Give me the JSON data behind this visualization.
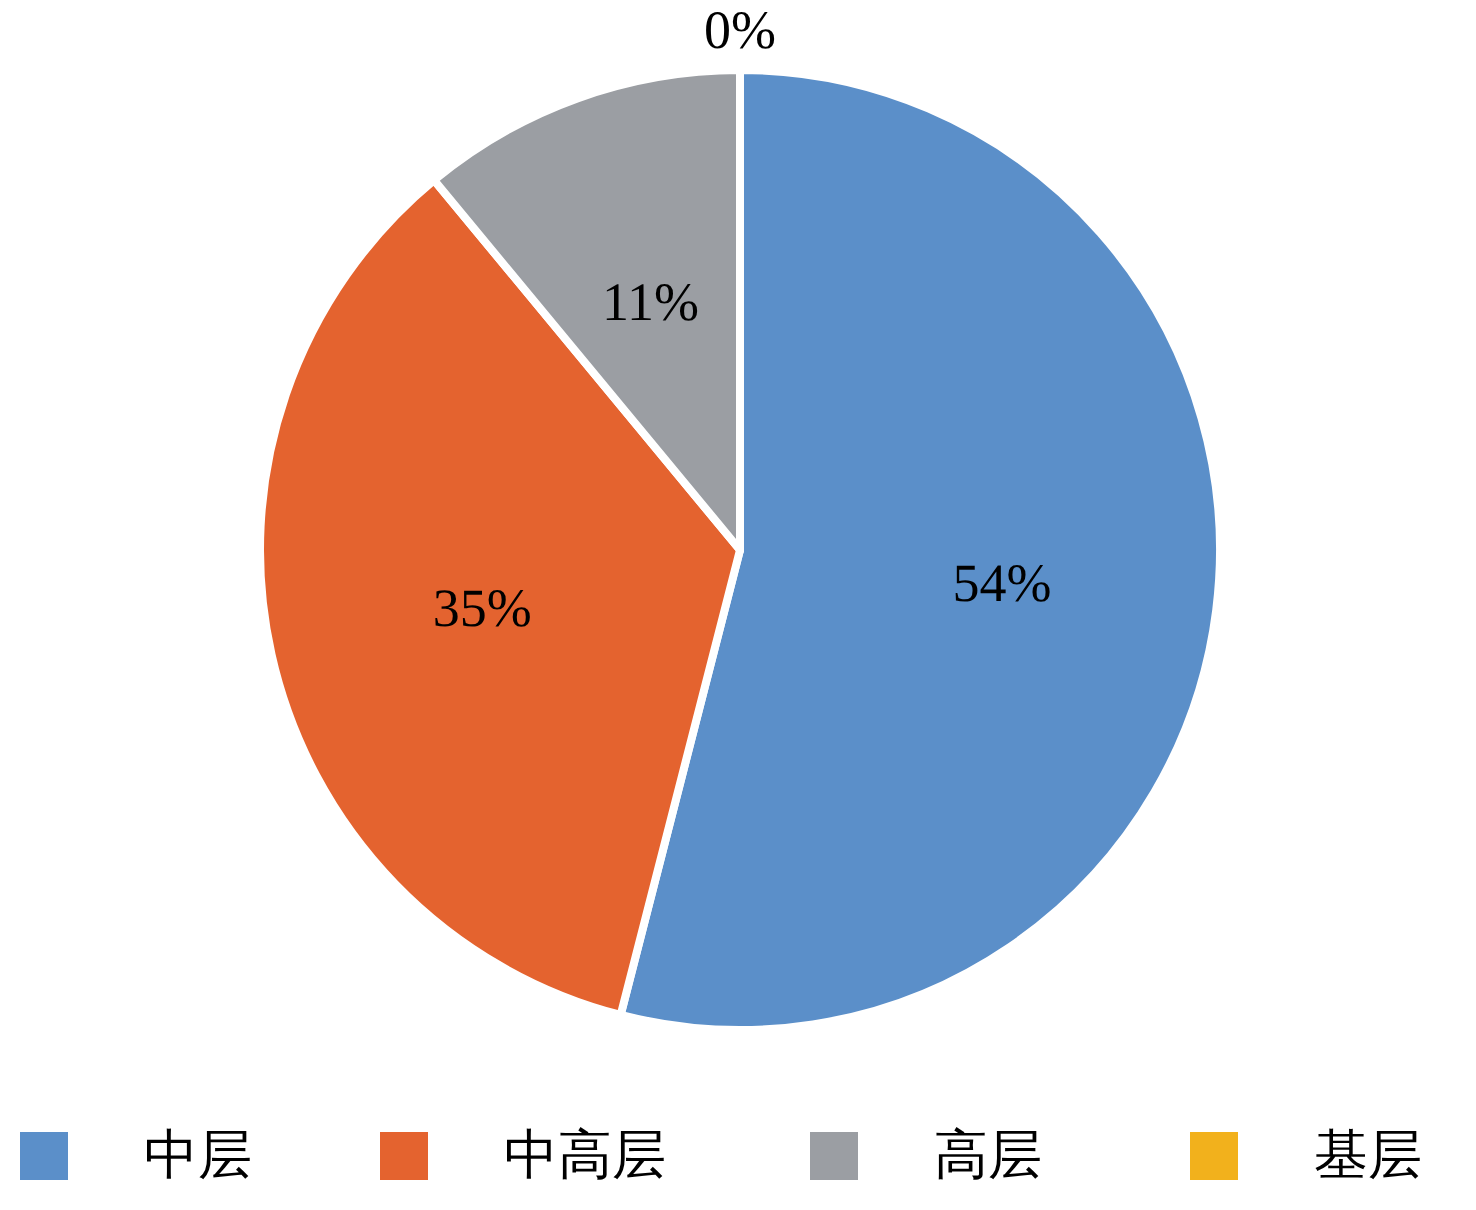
{
  "chart_data": {
    "type": "pie",
    "categories": [
      "中层",
      "中高层",
      "高层",
      "基层"
    ],
    "values": [
      54,
      35,
      11,
      0
    ],
    "colors": [
      "#5b8fc9",
      "#e4632f",
      "#9b9ea3",
      "#f2b11c"
    ],
    "value_labels": [
      "54%",
      "35%",
      "11%",
      "0%"
    ],
    "legend": "bottom"
  }
}
